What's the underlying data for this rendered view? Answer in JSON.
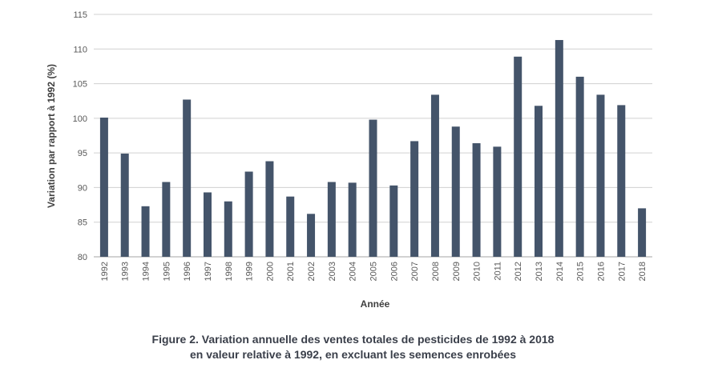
{
  "chart_data": {
    "type": "bar",
    "categories": [
      "1992",
      "1993",
      "1994",
      "1995",
      "1996",
      "1997",
      "1998",
      "1999",
      "2000",
      "2001",
      "2002",
      "2003",
      "2004",
      "2005",
      "2006",
      "2007",
      "2008",
      "2009",
      "2010",
      "2011",
      "2012",
      "2013",
      "2014",
      "2015",
      "2016",
      "2017",
      "2018"
    ],
    "values": [
      100.1,
      94.9,
      87.3,
      90.8,
      102.7,
      89.3,
      88.0,
      92.3,
      93.8,
      88.7,
      86.2,
      90.8,
      90.7,
      99.8,
      90.3,
      96.7,
      103.4,
      98.8,
      96.4,
      95.9,
      108.9,
      101.8,
      111.3,
      106.0,
      103.4,
      101.9,
      87.0
    ],
    "xlabel": "Année",
    "ylabel": "Variation par rapport à 1992 (%)",
    "ylim": [
      80,
      115
    ],
    "yticks": [
      "80",
      "85",
      "90",
      "95",
      "100",
      "105",
      "110",
      "115"
    ],
    "grid": true,
    "bar_color": "#44546a",
    "grid_color": "#d0d0d0"
  },
  "caption": {
    "line1": "Figure 2. Variation annuelle des ventes totales de pesticides de 1992 à 2018",
    "line2": "en valeur relative à 1992, en excluant les semences enrobées"
  }
}
